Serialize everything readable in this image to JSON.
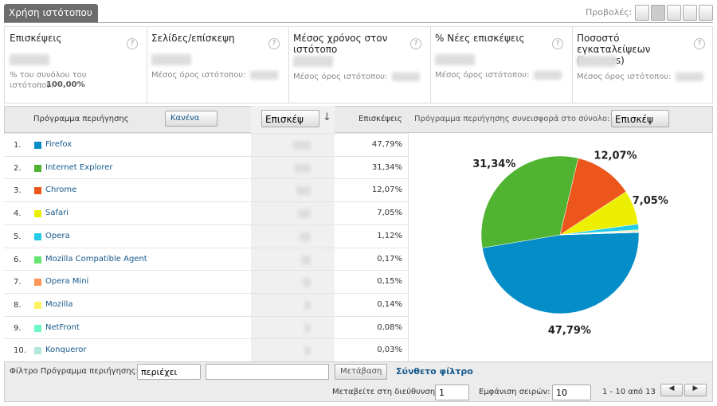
{
  "tab": "Χρήση ιστότοπου",
  "views_label": "Προβολές:",
  "metrics": [
    {
      "title": "Επισκέψεις",
      "note": "% του συνόλου του ιστότοπου:",
      "note_value": "100,00%"
    },
    {
      "title": "Σελίδες/επίσκεψη",
      "note": "Μέσος όρος ιστότοπου:"
    },
    {
      "title": "Μέσος χρόνος στον ιστότοπο",
      "note": "Μέσος όρος ιστότοπου:"
    },
    {
      "title": "% Νέες επισκέψεις",
      "note": "Μέσος όρος ιστότοπου:"
    },
    {
      "title": "Ποσοστό εγκαταλείψεων (bounces)",
      "note": "Μέσος όρος ιστότοπου:"
    }
  ],
  "table": {
    "dimension_header": "Πρόγραμμα περιήγησης",
    "secondary_dimension": "Κανένα",
    "sort_metric": "Επισκέψ",
    "share_header": "Επισκέψεις",
    "chart_header": "Πρόγραμμα περιήγησης συνεισφορά στο σύνολο:",
    "chart_metric": "Επισκέψ",
    "rows": [
      {
        "index": "1.",
        "name": "Firefox",
        "color": "#058dc7",
        "share": 47.79,
        "share_label": "47,79%"
      },
      {
        "index": "2.",
        "name": "Internet Explorer",
        "color": "#50b432",
        "share": 31.34,
        "share_label": "31,34%"
      },
      {
        "index": "3.",
        "name": "Chrome",
        "color": "#ed561b",
        "share": 12.07,
        "share_label": "12,07%"
      },
      {
        "index": "4.",
        "name": "Safari",
        "color": "#edef00",
        "share": 7.05,
        "share_label": "7,05%"
      },
      {
        "index": "5.",
        "name": "Opera",
        "color": "#24cbe5",
        "share": 1.12,
        "share_label": "1,12%"
      },
      {
        "index": "6.",
        "name": "Mozilla Compatible Agent",
        "color": "#64e572",
        "share": 0.17,
        "share_label": "0,17%"
      },
      {
        "index": "7.",
        "name": "Opera Mini",
        "color": "#ff9655",
        "share": 0.15,
        "share_label": "0,15%"
      },
      {
        "index": "8.",
        "name": "Mozilla",
        "color": "#fff263",
        "share": 0.14,
        "share_label": "0,14%"
      },
      {
        "index": "9.",
        "name": "NetFront",
        "color": "#6af9c4",
        "share": 0.08,
        "share_label": "0,08%"
      },
      {
        "index": "10.",
        "name": "Konqueror",
        "color": "#b2e6dc",
        "share": 0.03,
        "share_label": "0,03%"
      }
    ]
  },
  "footer": {
    "filter_label": "Φίλτρο Πρόγραμμα περιήγησης:",
    "filter_op": "περιέχει",
    "go_button": "Μετάβαση",
    "advanced_filter": "Σύνθετο φίλτρο",
    "goto_label": "Μεταβείτε στη διεύθυνση:",
    "goto_value": "1",
    "rows_label": "Εμφάνιση σειρών:",
    "rows_value": "10",
    "range": "1 - 10 από 13"
  }
}
